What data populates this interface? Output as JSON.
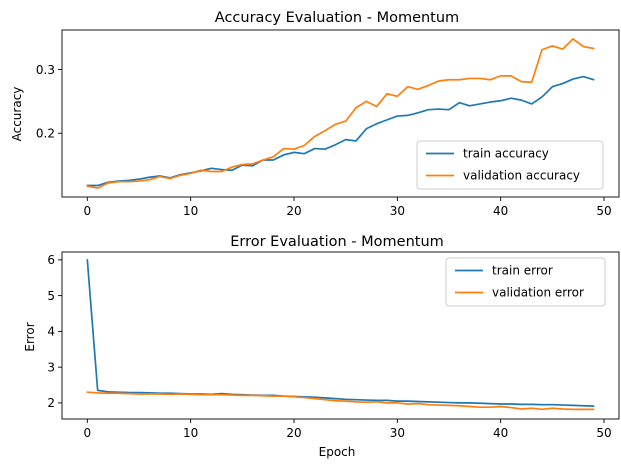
{
  "chart_data": [
    {
      "type": "line",
      "title": "Accuracy Evaluation - Momentum",
      "xlabel": "",
      "ylabel": "Accuracy",
      "xlim": [
        -2.45,
        51.45
      ],
      "ylim": [
        0.1,
        0.362
      ],
      "xticks": [
        0,
        10,
        20,
        30,
        40,
        50
      ],
      "yticks": [
        0.2,
        0.3
      ],
      "ytick_labels": [
        "0.2",
        "0.3"
      ],
      "legend_position": "lower-right",
      "grid": false,
      "x": [
        0,
        1,
        2,
        3,
        4,
        5,
        6,
        7,
        8,
        9,
        10,
        11,
        12,
        13,
        14,
        15,
        16,
        17,
        18,
        19,
        20,
        21,
        22,
        23,
        24,
        25,
        26,
        27,
        28,
        29,
        30,
        31,
        32,
        33,
        34,
        35,
        36,
        37,
        38,
        39,
        40,
        41,
        42,
        43,
        44,
        45,
        46,
        47,
        48,
        49
      ],
      "series": [
        {
          "name": "train accuracy",
          "color": "#1f77b4",
          "values": [
            0.118,
            0.118,
            0.123,
            0.125,
            0.126,
            0.128,
            0.131,
            0.133,
            0.13,
            0.135,
            0.138,
            0.141,
            0.145,
            0.143,
            0.142,
            0.15,
            0.149,
            0.158,
            0.158,
            0.166,
            0.17,
            0.168,
            0.176,
            0.175,
            0.182,
            0.19,
            0.188,
            0.207,
            0.215,
            0.221,
            0.227,
            0.228,
            0.232,
            0.237,
            0.238,
            0.237,
            0.248,
            0.243,
            0.246,
            0.249,
            0.251,
            0.255,
            0.252,
            0.246,
            0.257,
            0.273,
            0.278,
            0.285,
            0.289,
            0.284
          ]
        },
        {
          "name": "validation accuracy",
          "color": "#ff7f0e",
          "values": [
            0.117,
            0.114,
            0.122,
            0.124,
            0.124,
            0.125,
            0.127,
            0.132,
            0.129,
            0.134,
            0.137,
            0.142,
            0.14,
            0.14,
            0.147,
            0.151,
            0.152,
            0.158,
            0.163,
            0.176,
            0.175,
            0.181,
            0.195,
            0.204,
            0.214,
            0.219,
            0.24,
            0.25,
            0.242,
            0.262,
            0.258,
            0.273,
            0.269,
            0.275,
            0.282,
            0.284,
            0.284,
            0.286,
            0.286,
            0.284,
            0.29,
            0.29,
            0.281,
            0.28,
            0.331,
            0.337,
            0.332,
            0.348,
            0.336,
            0.333
          ]
        }
      ]
    },
    {
      "type": "line",
      "title": "Error Evaluation - Momentum",
      "xlabel": "Epoch",
      "ylabel": "Error",
      "xlim": [
        -2.45,
        51.45
      ],
      "ylim": [
        1.55,
        6.22
      ],
      "xticks": [
        0,
        10,
        20,
        30,
        40,
        50
      ],
      "yticks": [
        2,
        3,
        4,
        5,
        6
      ],
      "ytick_labels": [
        "2",
        "3",
        "4",
        "5",
        "6"
      ],
      "legend_position": "upper-right",
      "grid": false,
      "x": [
        0,
        1,
        2,
        3,
        4,
        5,
        6,
        7,
        8,
        9,
        10,
        11,
        12,
        13,
        14,
        15,
        16,
        17,
        18,
        19,
        20,
        21,
        22,
        23,
        24,
        25,
        26,
        27,
        28,
        29,
        30,
        31,
        32,
        33,
        34,
        35,
        36,
        37,
        38,
        39,
        40,
        41,
        42,
        43,
        44,
        45,
        46,
        47,
        48,
        49
      ],
      "series": [
        {
          "name": "train error",
          "color": "#1f77b4",
          "values": [
            6.0,
            2.35,
            2.31,
            2.3,
            2.29,
            2.29,
            2.28,
            2.27,
            2.27,
            2.26,
            2.25,
            2.25,
            2.24,
            2.26,
            2.24,
            2.23,
            2.22,
            2.21,
            2.21,
            2.19,
            2.18,
            2.17,
            2.16,
            2.14,
            2.12,
            2.1,
            2.09,
            2.08,
            2.07,
            2.07,
            2.05,
            2.05,
            2.04,
            2.03,
            2.02,
            2.01,
            2.0,
            2.0,
            1.99,
            1.98,
            1.97,
            1.97,
            1.96,
            1.96,
            1.95,
            1.95,
            1.94,
            1.93,
            1.92,
            1.91
          ]
        },
        {
          "name": "validation error",
          "color": "#ff7f0e",
          "values": [
            2.3,
            2.28,
            2.27,
            2.27,
            2.26,
            2.25,
            2.25,
            2.25,
            2.24,
            2.25,
            2.24,
            2.23,
            2.23,
            2.23,
            2.22,
            2.21,
            2.21,
            2.2,
            2.19,
            2.19,
            2.17,
            2.15,
            2.12,
            2.09,
            2.06,
            2.05,
            2.03,
            2.02,
            2.03,
            2.0,
            2.0,
            1.97,
            1.98,
            1.95,
            1.94,
            1.93,
            1.92,
            1.9,
            1.88,
            1.88,
            1.9,
            1.87,
            1.83,
            1.85,
            1.82,
            1.85,
            1.83,
            1.82,
            1.82,
            1.82
          ]
        }
      ]
    }
  ]
}
